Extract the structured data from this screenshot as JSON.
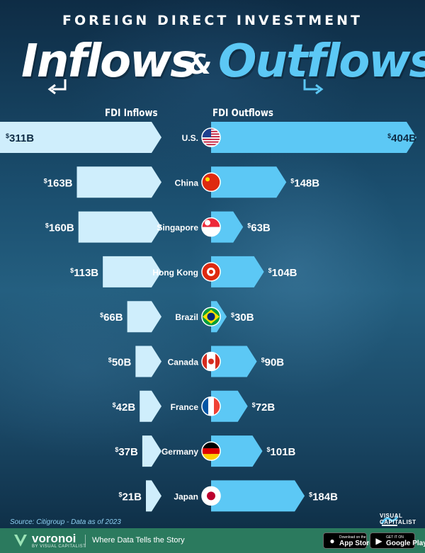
{
  "header": {
    "overline": "FOREIGN DIRECT INVESTMENT",
    "title_left": "Inflows",
    "title_amp": "&",
    "title_right": "Outflows"
  },
  "columns": {
    "inflows_label": "FDI Inflows",
    "outflows_label": "FDI Outflows"
  },
  "colors": {
    "inflow_bar": "#cfeefc",
    "outflow_bar": "#5cc8f5",
    "label_light": "#ffffff"
  },
  "chart_data": {
    "type": "bar",
    "unit_prefix": "$",
    "unit_suffix": "B",
    "categories": [
      "U.S.",
      "China",
      "Singapore",
      "Hong Kong",
      "Brazil",
      "Canada",
      "France",
      "Germany",
      "Japan"
    ],
    "flags": [
      "us-flag",
      "china-flag",
      "singapore-flag",
      "hong-kong-flag",
      "brazil-flag",
      "canada-flag",
      "france-flag",
      "germany-flag",
      "japan-flag"
    ],
    "series": [
      {
        "name": "FDI Inflows",
        "values": [
          311,
          163,
          160,
          113,
          66,
          50,
          42,
          37,
          21
        ]
      },
      {
        "name": "FDI Outflows",
        "values": [
          404,
          148,
          63,
          104,
          30,
          90,
          72,
          101,
          184
        ]
      }
    ]
  },
  "source": "Source: Citigroup - Data as of 2023",
  "branding": {
    "publisher_line1": "VISUAL",
    "publisher_line2": "CAPITALIST",
    "footer_name": "voronoi",
    "footer_sub": "BY VISUAL CAPITALIST",
    "tagline": "Where Data Tells the Story",
    "appstore_small": "Download on the",
    "appstore_big": "App Store",
    "googleplay_small": "GET IT ON",
    "googleplay_big": "Google Play"
  }
}
